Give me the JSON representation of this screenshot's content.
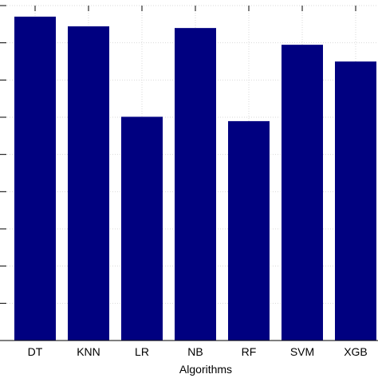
{
  "chart_data": {
    "type": "bar",
    "title": "",
    "xlabel": "Algorithms",
    "ylabel": "",
    "categories": [
      "DT",
      "KNN",
      "LR",
      "NB",
      "RF",
      "SVM",
      "XGB"
    ],
    "values": [
      0.967,
      0.938,
      0.668,
      0.933,
      0.655,
      0.883,
      0.833
    ],
    "ylim": [
      0,
      1
    ],
    "grid": true,
    "bar_color": "#000080",
    "grid_color": "#d9d9d9"
  }
}
